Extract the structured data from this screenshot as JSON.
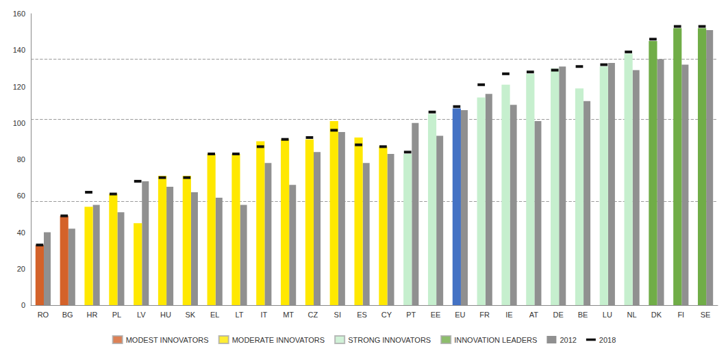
{
  "chart_data": {
    "type": "bar",
    "categories": [
      "RO",
      "BG",
      "HR",
      "PL",
      "LV",
      "HU",
      "SK",
      "EL",
      "LT",
      "IT",
      "MT",
      "CZ",
      "SI",
      "ES",
      "CY",
      "PT",
      "EE",
      "EU",
      "FR",
      "IE",
      "AT",
      "DE",
      "BE",
      "LU",
      "NL",
      "DK",
      "FI",
      "SE"
    ],
    "series": [
      {
        "type": "bar",
        "colors": [
          "#D4622A",
          "#D4622A",
          "#FFE800",
          "#FFE800",
          "#FFE800",
          "#FFE800",
          "#FFE800",
          "#FFE800",
          "#FFE800",
          "#FFE800",
          "#FFE800",
          "#FFE800",
          "#FFE800",
          "#FFE800",
          "#FFE800",
          "#C6EFCE",
          "#C6EFCE",
          "#4472C4",
          "#C6EFCE",
          "#C6EFCE",
          "#C6EFCE",
          "#C6EFCE",
          "#C6EFCE",
          "#C6EFCE",
          "#C6EFCE",
          "#70AD47",
          "#70AD47",
          "#70AD47"
        ],
        "values": [
          33,
          49,
          54,
          61,
          45,
          71,
          71,
          83,
          83,
          90,
          91,
          91,
          101,
          92,
          87,
          83,
          105,
          108,
          114,
          121,
          127,
          130,
          119,
          131,
          138,
          145,
          152,
          152
        ]
      },
      {
        "name": "2012",
        "type": "bar",
        "color": "#909090",
        "values": [
          40,
          42,
          55,
          51,
          68,
          65,
          62,
          59,
          55,
          78,
          66,
          84,
          95,
          78,
          83,
          100,
          93,
          107,
          116,
          110,
          101,
          131,
          112,
          133,
          129,
          135,
          132,
          151
        ]
      },
      {
        "name": "2018",
        "type": "scatter",
        "marker": "line",
        "color": "#111111",
        "values": [
          33,
          49,
          62,
          61,
          68,
          70,
          70,
          83,
          83,
          87,
          91,
          92,
          96,
          88,
          87,
          84,
          106,
          109,
          121,
          127,
          128,
          129,
          131,
          132,
          139,
          146,
          153,
          153
        ]
      }
    ],
    "legend_groups": [
      {
        "label": "MODEST INNOVATORS",
        "color": "#D4622A"
      },
      {
        "label": "MODERATE INNOVATORS",
        "color": "#FFE800"
      },
      {
        "label": "STRONG INNOVATORS",
        "color": "#C6EFCE"
      },
      {
        "label": "INNOVATION LEADERS",
        "color": "#70AD47"
      }
    ],
    "reference_lines": [
      57,
      102,
      135
    ],
    "ylim": [
      0,
      160
    ],
    "yticks": [
      0,
      20,
      40,
      60,
      80,
      100,
      120,
      140,
      160
    ],
    "grid": false,
    "legend": "bottom"
  }
}
